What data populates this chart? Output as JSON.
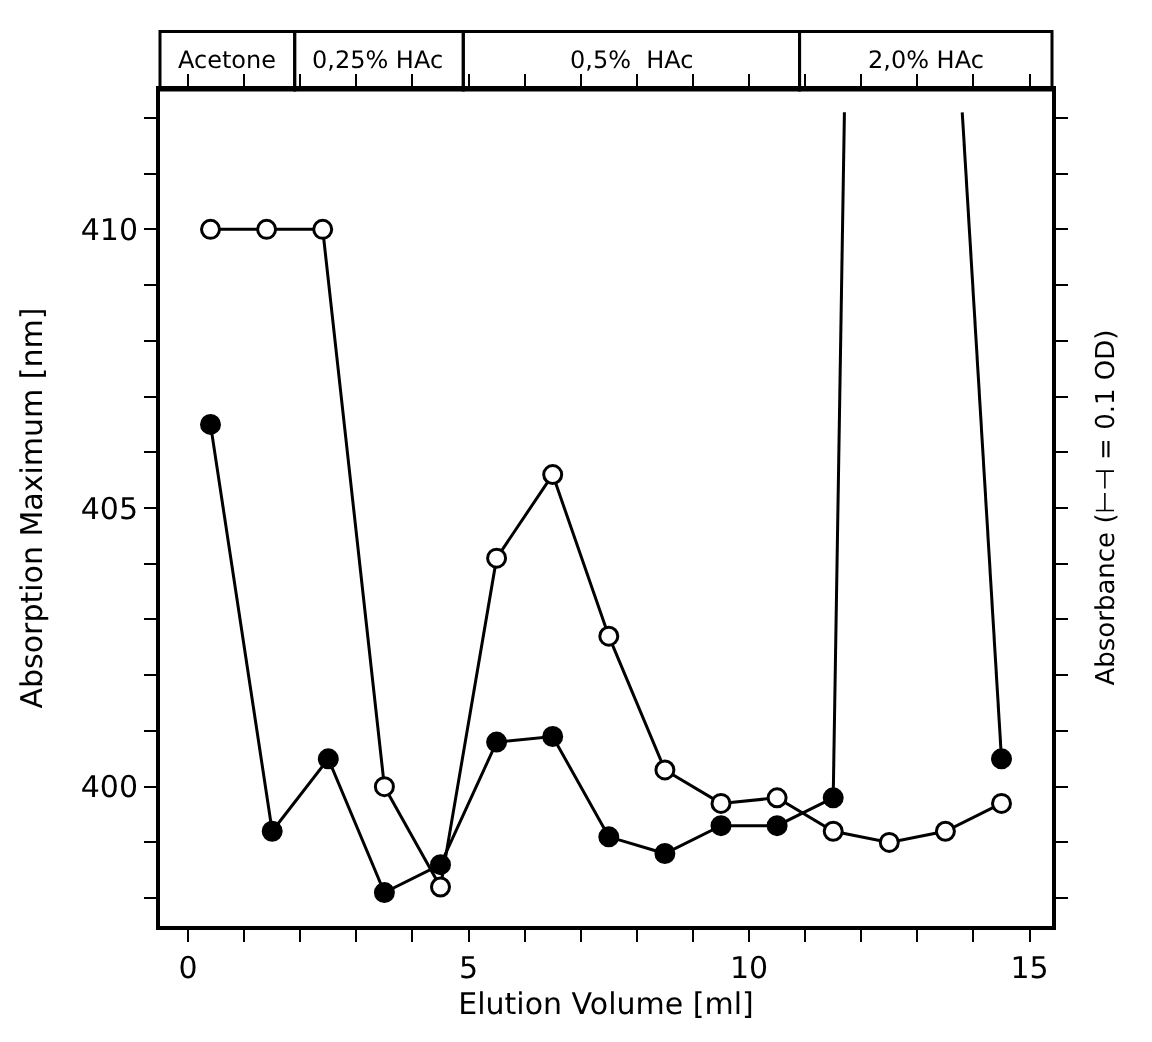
{
  "chart_data": {
    "type": "line",
    "xlabel": "Elution Volume [ml]",
    "ylabel": "Absorption Maximum [nm]",
    "y2label": "Absorbance (⊢⊣ = 0.1 OD)",
    "xlim": [
      -0.5,
      15.4
    ],
    "xticks": [
      0,
      {
        "value": 1,
        "label": null
      },
      {
        "value": 2,
        "label": null
      },
      {
        "value": 3,
        "label": null
      },
      {
        "value": 4,
        "label": null
      },
      5,
      {
        "value": 6,
        "label": null
      },
      {
        "value": 7,
        "label": null
      },
      {
        "value": 8,
        "label": null
      },
      {
        "value": 9,
        "label": null
      },
      10,
      {
        "value": 11,
        "label": null
      },
      {
        "value": 12,
        "label": null
      },
      {
        "value": 13,
        "label": null
      },
      {
        "value": 14,
        "label": null
      },
      15
    ],
    "ylim": [
      397.5,
      412.5
    ],
    "yticks": [
      {
        "value": 398,
        "label": null
      },
      {
        "value": 399,
        "label": null
      },
      400,
      {
        "value": 401,
        "label": null
      },
      {
        "value": 402,
        "label": null
      },
      {
        "value": 403,
        "label": null
      },
      {
        "value": 404,
        "label": null
      },
      405,
      {
        "value": 406,
        "label": null
      },
      {
        "value": 407,
        "label": null
      },
      {
        "value": 408,
        "label": null
      },
      {
        "value": 409,
        "label": null
      },
      410,
      {
        "value": 411,
        "label": null
      },
      {
        "value": 412,
        "label": null
      }
    ],
    "line_style": "solid",
    "series": [
      {
        "color": "#000000",
        "marker": "circle-open",
        "x": [
          0.4,
          1.4,
          2.4,
          3.5,
          4.5,
          5.5,
          6.5,
          7.5,
          8.5,
          9.5,
          10.5,
          11.5,
          12.5,
          13.5,
          14.5
        ],
        "values": [
          410.0,
          410.0,
          410.0,
          400.0,
          398.2,
          404.1,
          405.6,
          402.7,
          400.3,
          399.7,
          399.8,
          399.2,
          399.0,
          399.2,
          399.7
        ]
      },
      {
        "color": "#000000",
        "marker": "circle",
        "x": [
          0.4,
          1.5,
          2.5,
          3.5,
          4.5,
          5.5,
          6.5,
          7.5,
          8.5,
          9.5,
          10.5,
          11.5
        ],
        "values": [
          406.5,
          399.2,
          400.5,
          398.1,
          398.6,
          400.8,
          400.9,
          399.1,
          398.8,
          399.3,
          399.3,
          399.8
        ]
      },
      {
        "color": "#000000",
        "marker": "circle",
        "x": [
          14.5
        ],
        "values": [
          400.5
        ]
      },
      {
        "color": "#000000",
        "marker": "none",
        "x": [
          11.5,
          11.7,
          null,
          13.8,
          14.5
        ],
        "values": [
          399.8,
          412.1,
          null,
          412.1,
          400.5
        ]
      }
    ],
    "annotations": [
      "Acetone",
      "0,25% HAc",
      "0,5%  HAc",
      "2,0% HAc"
    ]
  }
}
